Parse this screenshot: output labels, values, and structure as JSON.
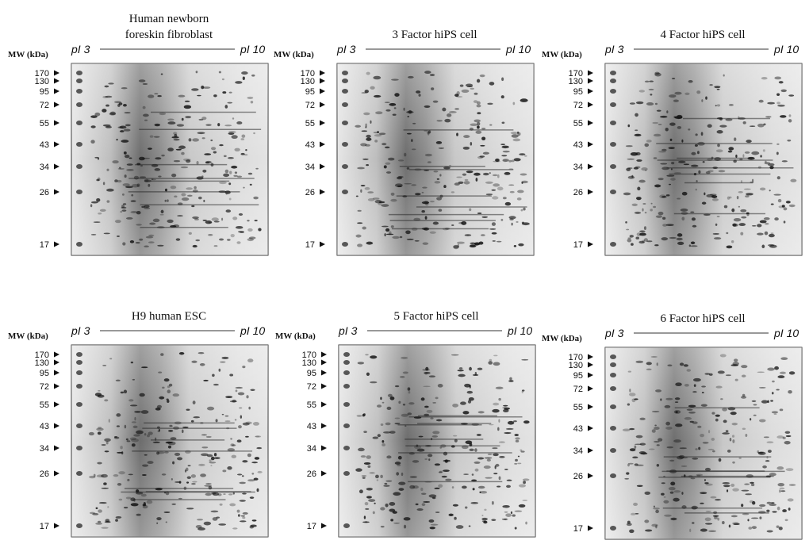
{
  "panels": [
    {
      "title": [
        "Human newborn",
        "foreskin fibroblast"
      ],
      "mw_label": "MW (kDa)",
      "pi_left": "pI 3",
      "pi_right": "pI 10",
      "markers": [
        "170",
        "130",
        "95",
        "72",
        "55",
        "43",
        "34",
        "26",
        "17"
      ]
    },
    {
      "title": [
        "3 Factor  hiPS cell"
      ],
      "mw_label": "MW (kDa)",
      "pi_left": "pI 3",
      "pi_right": "pI 10",
      "markers": [
        "170",
        "130",
        "95",
        "72",
        "55",
        "43",
        "34",
        "26",
        "17"
      ]
    },
    {
      "title": [
        "4 Factor  hiPS cell"
      ],
      "mw_label": "MW (kDa)",
      "pi_left": "pI 3",
      "pi_right": "pI 10",
      "markers": [
        "170",
        "130",
        "95",
        "72",
        "55",
        "43",
        "34",
        "26",
        "17"
      ]
    },
    {
      "title": [
        "H9 human ESC"
      ],
      "mw_label": "MW (kDa)",
      "pi_left": "pI 3",
      "pi_right": "pI 10",
      "markers": [
        "170",
        "130",
        "95",
        "72",
        "55",
        "43",
        "34",
        "26",
        "17"
      ]
    },
    {
      "title": [
        "5 Factor  hiPS cell"
      ],
      "mw_label": "MW (kDa)",
      "pi_left": "pI 3",
      "pi_right": "pI 10",
      "markers": [
        "170",
        "130",
        "95",
        "72",
        "55",
        "43",
        "34",
        "26",
        "17"
      ]
    },
    {
      "title": [
        "6 Factor  hiPS cell"
      ],
      "mw_label": "MW (kDa)",
      "pi_left": "pI 3",
      "pi_right": "pI 10",
      "markers": [
        "170",
        "130",
        "95",
        "72",
        "55",
        "43",
        "34",
        "26",
        "17"
      ]
    }
  ]
}
